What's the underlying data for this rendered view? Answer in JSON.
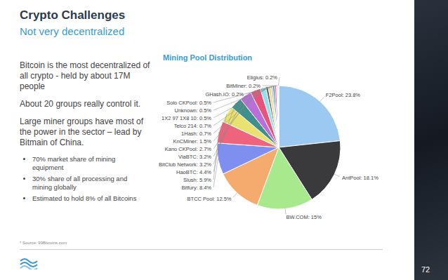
{
  "header": {
    "title": "Crypto Challenges",
    "subtitle": "Not very decentralized"
  },
  "body": {
    "paragraphs": [
      "Bitcoin is the most decentralized of all crypto - held by about 17M people",
      "About 20 groups really control it.",
      "Large miner groups have most of the power in the sector – lead by Bitmain of China."
    ],
    "bullets": [
      "70% market share of mining equipment",
      "30% share of all processing and mining globally",
      "Estimated to hold 8% of all Bitcoins"
    ]
  },
  "source": "* Source: 99Bitcoins.com",
  "page_number": "72",
  "chart_data": {
    "type": "pie",
    "title": "Mining Pool Distribution",
    "values": [
      23.8,
      18.1,
      15,
      12.5,
      8.4,
      5.9,
      4.4,
      3.2,
      3.2,
      2.7,
      1.5,
      0.7,
      0.7,
      0.5,
      0.5,
      0.5,
      0.2,
      0.2,
      0.2
    ],
    "value_labels": [
      "F2Pool: 23.8%",
      "AntPool: 18.1%",
      "BW.COM: 15%",
      "BTCC Pool: 12.5%",
      "Bitfury: 8.4%",
      "Slush: 5.9%",
      "HaoBTC: 4.4%",
      "BitClub Network: 3.2%",
      "ViaBTC: 3.2%",
      "Kano CKPool: 2.7%",
      "KnCMiner: 1.5%",
      "1Hash: 0.7%",
      "Telco 214: 0.7%",
      "1X2 97 1X8 10: 0.5%",
      "Unknown: 0.5%",
      "Solo CKPool: 0.5%",
      "GHash.IO: 0.2%",
      "BitMiner: 0.2%",
      "Eligius: 0.2%"
    ],
    "colors": [
      "#9cc9f2",
      "#3a3a3c",
      "#a8e98e",
      "#f6ab6e",
      "#7f8ff0",
      "#f0637d",
      "#e9e170",
      "#3f8f8a",
      "#b86fd8",
      "#e8537b",
      "#92e1ea",
      "#6b6b6b",
      "#f1d284",
      "#93d3a3",
      "#5272c2",
      "#f06683",
      "#d2d2d2",
      "#606060",
      "#f1f084"
    ],
    "data_labels": true
  }
}
